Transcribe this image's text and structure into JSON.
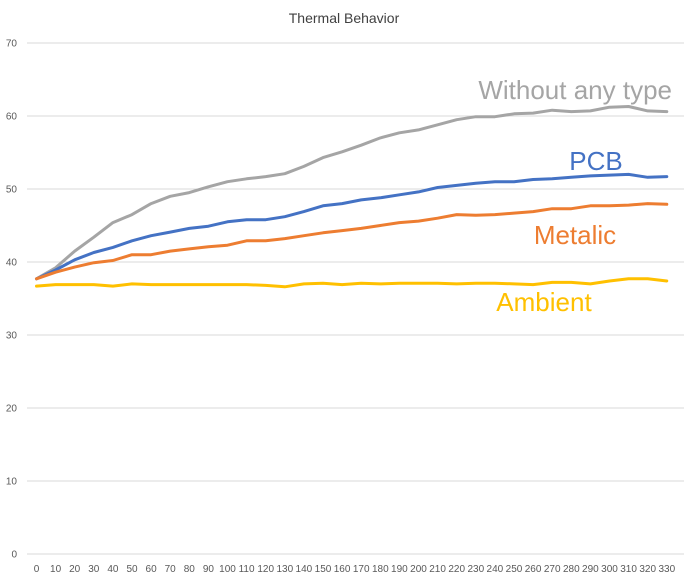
{
  "chart_data": {
    "type": "line",
    "title": "Thermal Behavior",
    "xlabel": "",
    "ylabel": "",
    "ylim": [
      0,
      70
    ],
    "yticks": [
      0,
      10,
      20,
      30,
      40,
      50,
      60,
      70
    ],
    "grid": true,
    "legend": "none",
    "x": [
      0,
      10,
      20,
      30,
      40,
      50,
      60,
      70,
      80,
      90,
      100,
      110,
      120,
      130,
      140,
      150,
      160,
      170,
      180,
      190,
      200,
      210,
      220,
      230,
      240,
      250,
      260,
      270,
      280,
      290,
      300,
      310,
      320,
      330
    ],
    "series": [
      {
        "name": "Without any type",
        "color": "#a5a5a5",
        "values": [
          37.7,
          39.2,
          41.5,
          43.4,
          45.4,
          46.5,
          48.0,
          49.0,
          49.5,
          50.3,
          51.0,
          51.4,
          51.7,
          52.1,
          53.1,
          54.3,
          55.1,
          56.0,
          57.0,
          57.7,
          58.1,
          58.8,
          59.5,
          59.9,
          59.9,
          60.3,
          60.4,
          60.8,
          60.6,
          60.7,
          61.2,
          61.3,
          60.7,
          60.6
        ]
      },
      {
        "name": "PCB",
        "color": "#4472c4",
        "values": [
          37.7,
          38.9,
          40.3,
          41.3,
          42.0,
          42.9,
          43.6,
          44.1,
          44.6,
          44.9,
          45.5,
          45.8,
          45.8,
          46.2,
          46.9,
          47.7,
          48.0,
          48.5,
          48.8,
          49.2,
          49.6,
          50.2,
          50.5,
          50.8,
          51.0,
          51.0,
          51.3,
          51.4,
          51.6,
          51.8,
          51.9,
          52.0,
          51.6,
          51.7
        ]
      },
      {
        "name": "Metalic",
        "color": "#ed7d31",
        "values": [
          37.7,
          38.6,
          39.3,
          39.9,
          40.2,
          41.0,
          41.0,
          41.5,
          41.8,
          42.1,
          42.3,
          42.9,
          42.9,
          43.2,
          43.6,
          44.0,
          44.3,
          44.6,
          45.0,
          45.4,
          45.6,
          46.0,
          46.5,
          46.4,
          46.5,
          46.7,
          46.9,
          47.3,
          47.3,
          47.7,
          47.7,
          47.8,
          48.0,
          47.9
        ]
      },
      {
        "name": "Ambient",
        "color": "#ffc000",
        "values": [
          36.7,
          36.9,
          36.9,
          36.9,
          36.7,
          37.0,
          36.9,
          36.9,
          36.9,
          36.9,
          36.9,
          36.9,
          36.8,
          36.6,
          37.0,
          37.1,
          36.9,
          37.1,
          37.0,
          37.1,
          37.1,
          37.1,
          37.0,
          37.1,
          37.1,
          37.0,
          36.9,
          37.2,
          37.2,
          37.0,
          37.4,
          37.7,
          37.7,
          37.4
        ]
      }
    ],
    "annotations": [
      {
        "text": "Without any type",
        "color": "#a5a5a5"
      },
      {
        "text": "PCB",
        "color": "#4472c4"
      },
      {
        "text": "Metalic",
        "color": "#ed7d31"
      },
      {
        "text": "Ambient",
        "color": "#ffc000"
      }
    ]
  }
}
